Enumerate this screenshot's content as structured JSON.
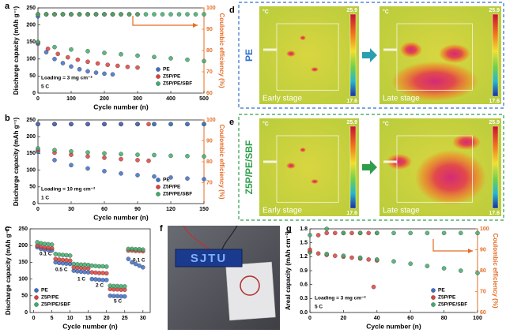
{
  "chart_data": [
    {
      "type": "scatter",
      "panel": "a",
      "x_label": "Cycle number (n)",
      "y_label": "Discharge capacity (mAh g⁻¹)",
      "y2_label": "Coulombic efficiency (%)",
      "annotations": [
        "Loading = 3 mg cm⁻²",
        "5 C"
      ],
      "xlim": [
        0,
        500
      ],
      "xticks": [
        0,
        100,
        200,
        300,
        400,
        500
      ],
      "ylim": [
        0,
        250
      ],
      "yticks": [
        0,
        50,
        100,
        150,
        200,
        250
      ],
      "y2lim": [
        60,
        100
      ],
      "y2ticks": [
        60,
        70,
        80,
        90,
        100
      ],
      "series": [
        {
          "name": "PE",
          "color": "#3d6fc9",
          "x": [
            0,
            25,
            50,
            75,
            100,
            125,
            150,
            175,
            200,
            225
          ],
          "values": [
            145,
            120,
            100,
            88,
            78,
            70,
            64,
            60,
            57,
            55
          ]
        },
        {
          "name": "Z5P/PE",
          "color": "#e0403a",
          "x": [
            0,
            30,
            60,
            90,
            120,
            150,
            180,
            210,
            240,
            270,
            300
          ],
          "values": [
            148,
            130,
            115,
            105,
            98,
            92,
            87,
            83,
            80,
            77,
            75
          ]
        },
        {
          "name": "Z5P/PE/SBF",
          "color": "#3dae6a",
          "x": [
            0,
            50,
            100,
            150,
            200,
            250,
            300,
            350,
            400,
            450,
            500
          ],
          "values": [
            150,
            135,
            128,
            123,
            118,
            114,
            110,
            106,
            102,
            98,
            94
          ]
        },
        {
          "axis": "y2",
          "color": "#3d6fc9",
          "x": [
            0,
            25,
            50,
            75,
            100,
            125,
            150,
            175,
            200,
            225
          ],
          "values": [
            96,
            97,
            97,
            97,
            97,
            97,
            97,
            97,
            97,
            97
          ]
        },
        {
          "axis": "y2",
          "color": "#e0403a",
          "x": [
            0,
            25,
            50,
            75,
            100,
            125,
            150,
            175,
            200,
            225,
            250,
            275,
            300
          ],
          "values": [
            97,
            97,
            97,
            97,
            97,
            97,
            97,
            97,
            97,
            97,
            97,
            97,
            97
          ]
        },
        {
          "axis": "y2",
          "color": "#3dae6a",
          "x": [
            0,
            25,
            50,
            75,
            100,
            125,
            150,
            175,
            200,
            225,
            250,
            275,
            300,
            325,
            350,
            375,
            400,
            425,
            450,
            475,
            500
          ],
          "values": [
            97,
            97,
            97,
            97,
            97,
            97,
            97,
            97,
            97,
            97,
            97,
            97,
            97,
            97,
            97,
            97,
            97,
            97,
            97,
            97,
            97
          ]
        }
      ]
    },
    {
      "type": "scatter",
      "panel": "b",
      "x_label": "Cycle number (n)",
      "y_label": "Discharge capacity (mAh g⁻¹)",
      "y2_label": "Coulombic efficiency (%)",
      "annotations": [
        "Loading = 10 mg cm⁻²",
        "1 C"
      ],
      "xlim": [
        0,
        150
      ],
      "xticks": [
        0,
        30,
        60,
        90,
        120,
        150
      ],
      "ylim": [
        0,
        250
      ],
      "yticks": [
        0,
        50,
        100,
        150,
        200,
        250
      ],
      "y2lim": [
        60,
        100
      ],
      "y2ticks": [
        70,
        80,
        90,
        100
      ],
      "series": [
        {
          "name": "PE",
          "color": "#3d6fc9",
          "x": [
            0,
            15,
            30,
            45,
            60,
            75,
            90,
            105,
            120,
            135,
            150
          ],
          "values": [
            155,
            130,
            115,
            105,
            97,
            90,
            85,
            81,
            78,
            75,
            73
          ]
        },
        {
          "name": "Z5P/PE",
          "color": "#e0403a",
          "x": [
            0,
            15,
            30,
            45,
            60,
            75,
            90,
            100
          ],
          "values": [
            160,
            152,
            146,
            141,
            137,
            133,
            130,
            128
          ]
        },
        {
          "name": "Z5P/PE/SBF",
          "color": "#3dae6a",
          "x": [
            0,
            15,
            30,
            45,
            60,
            75,
            90,
            105,
            120,
            135,
            150
          ],
          "values": [
            165,
            160,
            156,
            153,
            150,
            148,
            146,
            145,
            143,
            142,
            141
          ]
        },
        {
          "axis": "y2",
          "color": "#3dae6a",
          "x": [
            0,
            15,
            30,
            45,
            60,
            75,
            90,
            105,
            120,
            135,
            150
          ],
          "values": [
            98,
            98,
            98,
            98,
            98,
            98,
            98,
            98,
            98,
            98,
            98
          ]
        },
        {
          "axis": "y2",
          "color": "#e0403a",
          "x": [
            0,
            15,
            30,
            45,
            60,
            75,
            90,
            100
          ],
          "values": [
            98,
            98,
            98,
            98,
            98,
            98,
            98,
            98
          ]
        },
        {
          "axis": "y2",
          "color": "#3d6fc9",
          "x": [
            0,
            15,
            30,
            45,
            60,
            75,
            90,
            105,
            120,
            135,
            150
          ],
          "values": [
            98,
            98,
            98,
            98,
            98,
            98,
            98,
            98,
            98,
            98,
            98
          ]
        }
      ]
    },
    {
      "type": "scatter",
      "panel": "c",
      "x_label": "Cycle number (n)",
      "y_label": "Discharge capacity (mAh g⁻¹)",
      "annotations": [
        "0.1 C",
        "0.5 C",
        "1 C",
        "2 C",
        "5 C",
        "0.1 C"
      ],
      "xlim": [
        -1,
        32
      ],
      "xticks": [
        0,
        5,
        10,
        15,
        20,
        25,
        30
      ],
      "ylim": [
        0,
        250
      ],
      "yticks": [
        0,
        50,
        100,
        150,
        200,
        250
      ],
      "series": [
        {
          "name": "PE",
          "color": "#3d6fc9",
          "x": [
            1,
            2,
            3,
            4,
            5,
            6,
            7,
            8,
            9,
            10,
            11,
            12,
            13,
            14,
            15,
            16,
            17,
            18,
            19,
            20,
            21,
            22,
            23,
            24,
            25,
            26,
            27,
            28,
            29,
            30
          ],
          "values": [
            195,
            190,
            188,
            187,
            186,
            150,
            148,
            147,
            146,
            145,
            125,
            123,
            122,
            121,
            120,
            100,
            99,
            98,
            97,
            97,
            50,
            49,
            49,
            48,
            48,
            160,
            150,
            145,
            140,
            135
          ]
        },
        {
          "name": "Z5P/PE",
          "color": "#e0403a",
          "x": [
            1,
            2,
            3,
            4,
            5,
            6,
            7,
            8,
            9,
            10,
            11,
            12,
            13,
            14,
            15,
            16,
            17,
            18,
            19,
            20,
            21,
            22,
            23,
            24,
            25,
            26,
            27,
            28,
            29,
            30
          ],
          "values": [
            200,
            196,
            194,
            193,
            192,
            160,
            158,
            157,
            156,
            155,
            135,
            134,
            133,
            132,
            132,
            120,
            119,
            118,
            118,
            117,
            70,
            69,
            69,
            68,
            68,
            185,
            185,
            184,
            184,
            183
          ]
        },
        {
          "name": "Z5P/PE/SBF",
          "color": "#3dae6a",
          "x": [
            1,
            2,
            3,
            4,
            5,
            6,
            7,
            8,
            9,
            10,
            11,
            12,
            13,
            14,
            15,
            16,
            17,
            18,
            19,
            20,
            21,
            22,
            23,
            24,
            25,
            26,
            27,
            28,
            29,
            30
          ],
          "values": [
            210,
            207,
            205,
            204,
            203,
            175,
            173,
            172,
            171,
            170,
            145,
            144,
            143,
            143,
            142,
            140,
            139,
            138,
            138,
            137,
            80,
            79,
            79,
            78,
            78,
            190,
            190,
            189,
            189,
            188
          ]
        }
      ]
    },
    {
      "type": "scatter",
      "panel": "g",
      "x_label": "Cycle number (n)",
      "y_label": "Areal capacity (mAh cm⁻²)",
      "y2_label": "Coulombic efficiency (%)",
      "annotations": [
        "Loading = 3 mg cm⁻²",
        "5 C"
      ],
      "xlim": [
        0,
        100
      ],
      "xticks": [
        0,
        20,
        40,
        60,
        80,
        100
      ],
      "ylim": [
        0,
        1.8
      ],
      "yticks": [
        {
          "value": 0,
          "label": "0.0"
        },
        0.3,
        0.6,
        0.9,
        1.2,
        1.5,
        1.8
      ],
      "y2lim": [
        60,
        100
      ],
      "y2ticks": [
        60,
        70,
        80,
        90,
        100
      ],
      "series": [
        {
          "name": "PE",
          "color": "#3d6fc9",
          "x": [],
          "values": []
        },
        {
          "name": "Z5P/PE",
          "color": "#e0403a",
          "x": [
            0,
            5,
            10,
            15,
            20,
            25,
            30,
            35,
            40,
            38
          ],
          "values": [
            1.3,
            1.27,
            1.24,
            1.22,
            1.2,
            1.18,
            1.16,
            1.14,
            1.12,
            0.55
          ]
        },
        {
          "name": "Z5P/PE/SBF",
          "color": "#3dae6a",
          "x": [
            0,
            10,
            20,
            30,
            40,
            50,
            60,
            70,
            80,
            90,
            100
          ],
          "values": [
            1.3,
            1.26,
            1.22,
            1.18,
            1.14,
            1.1,
            1.05,
            1.0,
            0.95,
            0.9,
            0.85
          ]
        },
        {
          "axis": "y2",
          "color": "#e0403a",
          "x": [
            0,
            5,
            10,
            15,
            20,
            25,
            30,
            35,
            40
          ],
          "values": [
            90,
            97,
            98,
            98,
            98,
            98,
            98,
            98,
            98
          ]
        },
        {
          "axis": "y2",
          "color": "#3dae6a",
          "x": [
            0,
            10,
            20,
            30,
            40,
            50,
            60,
            70,
            80,
            90,
            100
          ],
          "values": [
            97,
            100,
            98,
            98,
            98,
            98,
            98,
            98,
            98,
            98,
            98
          ]
        }
      ]
    }
  ],
  "thermal": [
    {
      "panel": "d",
      "sample": "PE",
      "unit": "°C",
      "max": 25.9,
      "min": 17.6,
      "stages": [
        "Early stage",
        "Late stage"
      ]
    },
    {
      "panel": "e",
      "sample": "Z5P/PE/SBF",
      "unit": "°C",
      "max": 25.9,
      "min": 17.6,
      "stages": [
        "Early stage",
        "Late stage"
      ]
    }
  ],
  "photo": {
    "panel": "f",
    "display": "SJTU"
  }
}
